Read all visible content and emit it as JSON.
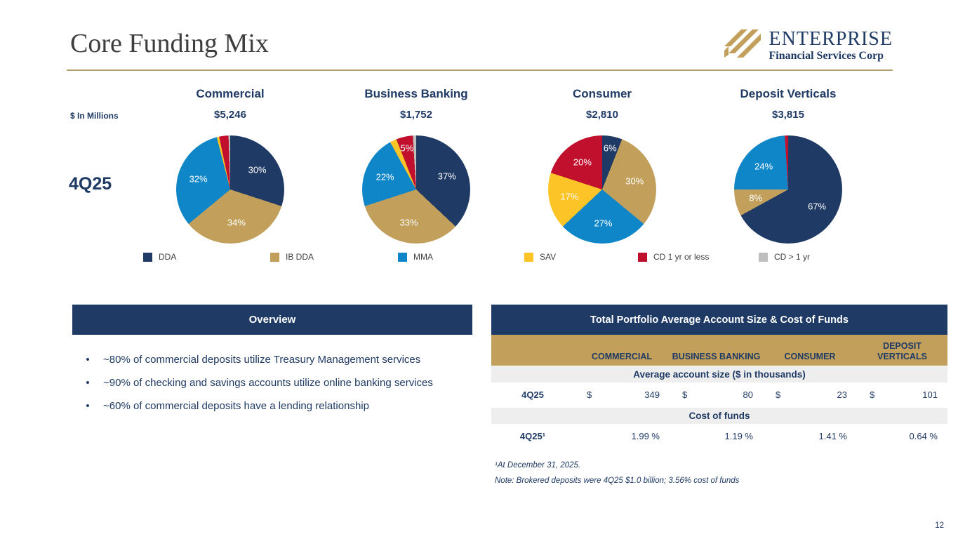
{
  "slide": {
    "title": "Core Funding Mix",
    "units_label": "$ In Millions",
    "period_label": "4Q25",
    "page_number": "12"
  },
  "logo": {
    "name": "ENTERPRISE",
    "subtitle": "Financial Services Corp"
  },
  "colors": {
    "navy": "#1f3a64",
    "gold": "#c2a05c",
    "blue": "#0f86c8",
    "yellow": "#fdc428",
    "red": "#c1102e",
    "gray": "#bfbfbf",
    "rule_gold": "#b2a06e"
  },
  "legend": [
    {
      "label": "DDA",
      "color": "#1f3a64"
    },
    {
      "label": "IB DDA",
      "color": "#c2a05c"
    },
    {
      "label": "MMA",
      "color": "#0f86c8"
    },
    {
      "label": "SAV",
      "color": "#fdc428"
    },
    {
      "label": "CD 1 yr or less",
      "color": "#c1102e"
    },
    {
      "label": "CD > 1 yr",
      "color": "#bfbfbf"
    }
  ],
  "chart_data": [
    {
      "type": "pie",
      "title": "Commercial",
      "total": "$5,246",
      "units": "$ in millions",
      "period": "4Q25",
      "slices": [
        {
          "name": "DDA",
          "pct": 30,
          "label": "30%",
          "color": "#1f3a64"
        },
        {
          "name": "IB DDA",
          "pct": 34,
          "label": "34%",
          "color": "#c2a05c"
        },
        {
          "name": "MMA",
          "pct": 32,
          "label": "32%",
          "color": "#0f86c8"
        },
        {
          "name": "SAV",
          "pct": 0.7,
          "label": null,
          "color": "#fdc428"
        },
        {
          "name": "CD 1 yr or less",
          "pct": 2.8,
          "label": null,
          "color": "#c1102e"
        },
        {
          "name": "CD > 1 yr",
          "pct": 0.5,
          "label": null,
          "color": "#bfbfbf"
        }
      ]
    },
    {
      "type": "pie",
      "title": "Business Banking",
      "total": "$1,752",
      "units": "$ in millions",
      "period": "4Q25",
      "slices": [
        {
          "name": "DDA",
          "pct": 37,
          "label": "37%",
          "color": "#1f3a64"
        },
        {
          "name": "IB DDA",
          "pct": 33,
          "label": "33%",
          "color": "#c2a05c"
        },
        {
          "name": "MMA",
          "pct": 22,
          "label": "22%",
          "color": "#0f86c8"
        },
        {
          "name": "SAV",
          "pct": 2,
          "label": null,
          "color": "#fdc428"
        },
        {
          "name": "CD 1 yr or less",
          "pct": 5,
          "label": "5%",
          "color": "#c1102e"
        },
        {
          "name": "CD > 1 yr",
          "pct": 1,
          "label": null,
          "color": "#bfbfbf"
        }
      ]
    },
    {
      "type": "pie",
      "title": "Consumer",
      "total": "$2,810",
      "units": "$ in millions",
      "period": "4Q25",
      "slices": [
        {
          "name": "DDA",
          "pct": 6,
          "label": "6%",
          "color": "#1f3a64"
        },
        {
          "name": "IB DDA",
          "pct": 30,
          "label": "30%",
          "color": "#c2a05c"
        },
        {
          "name": "MMA",
          "pct": 27,
          "label": "27%",
          "color": "#0f86c8"
        },
        {
          "name": "SAV",
          "pct": 17,
          "label": "17%",
          "color": "#fdc428"
        },
        {
          "name": "CD 1 yr or less",
          "pct": 20,
          "label": "20%",
          "color": "#c1102e"
        },
        {
          "name": "CD > 1 yr",
          "pct": 0,
          "label": null,
          "color": "#bfbfbf"
        }
      ]
    },
    {
      "type": "pie",
      "title": "Deposit Verticals",
      "total": "$3,815",
      "units": "$ in millions",
      "period": "4Q25",
      "slices": [
        {
          "name": "DDA",
          "pct": 67,
          "label": "67%",
          "color": "#1f3a64"
        },
        {
          "name": "IB DDA",
          "pct": 8,
          "label": "8%",
          "color": "#c2a05c"
        },
        {
          "name": "MMA",
          "pct": 24,
          "label": "24%",
          "color": "#0f86c8"
        },
        {
          "name": "SAV",
          "pct": 0,
          "label": null,
          "color": "#fdc428"
        },
        {
          "name": "CD 1 yr or less",
          "pct": 1,
          "label": null,
          "color": "#c1102e"
        },
        {
          "name": "CD > 1 yr",
          "pct": 0,
          "label": null,
          "color": "#bfbfbf"
        }
      ]
    }
  ],
  "overview": {
    "title": "Overview",
    "bullet_glyph": "•",
    "bullets": [
      "~80% of commercial deposits utilize Treasury Management services",
      "~90% of checking and savings accounts utilize online banking services",
      "~60% of commercial deposits have a lending relationship"
    ]
  },
  "table": {
    "title": "Total Portfolio Average Account Size & Cost of Funds",
    "columns": [
      "COMMERCIAL",
      "BUSINESS BANKING",
      "CONSUMER",
      "DEPOSIT VERTICALS"
    ],
    "section1_header": "Average account size ($ in thousands)",
    "row1_label": "4Q25",
    "currency": "$",
    "row1_values": [
      "349",
      "80",
      "23",
      "101"
    ],
    "section2_header": "Cost of funds",
    "row2_label": "4Q25¹",
    "row2_values": [
      "1.99 %",
      "1.19 %",
      "1.41 %",
      "0.64 %"
    ]
  },
  "footnotes": [
    "¹At December 31, 2025.",
    "Note: Brokered deposits were 4Q25 $1.0 billion; 3.56% cost of funds"
  ]
}
